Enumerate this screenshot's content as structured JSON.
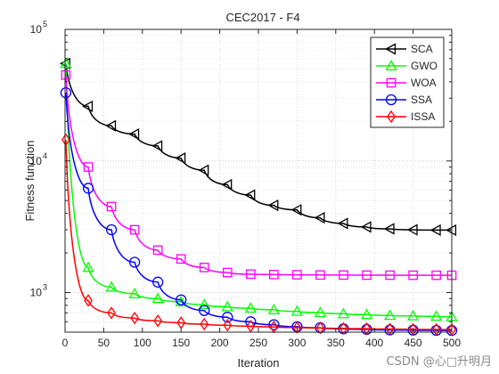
{
  "chart_data": {
    "type": "line",
    "title": "CEC2017 - F4",
    "xlabel": "Iteration",
    "ylabel": "Fitness function",
    "xlim": [
      0,
      500
    ],
    "ylim": [
      500,
      100000
    ],
    "yscale": "log",
    "grid": true,
    "legend_position": "top-right",
    "x_ticks": [
      "0",
      "50",
      "100",
      "150",
      "200",
      "250",
      "300",
      "350",
      "400",
      "450",
      "500"
    ],
    "y_ticks": [
      {
        "base": "10",
        "exp": "3",
        "value": 1000
      },
      {
        "base": "10",
        "exp": "4",
        "value": 10000
      },
      {
        "base": "10",
        "exp": "5",
        "value": 100000
      }
    ],
    "x": [
      1,
      30,
      60,
      90,
      120,
      150,
      180,
      210,
      240,
      270,
      300,
      330,
      360,
      390,
      420,
      450,
      480,
      500
    ],
    "series": [
      {
        "name": "SCA",
        "color": "#000000",
        "marker": "triangle-left",
        "values": [
          55000,
          26000,
          18500,
          16000,
          13000,
          10500,
          8500,
          6600,
          5500,
          4600,
          4250,
          3700,
          3350,
          3150,
          3050,
          3000,
          2980,
          2980
        ]
      },
      {
        "name": "GWO",
        "color": "#00ff00",
        "marker": "triangle-up",
        "values": [
          55000,
          1550,
          1100,
          980,
          900,
          850,
          810,
          780,
          760,
          740,
          720,
          705,
          690,
          680,
          670,
          665,
          660,
          655
        ]
      },
      {
        "name": "WOA",
        "color": "#ff00ff",
        "marker": "square",
        "values": [
          45000,
          9000,
          4500,
          3000,
          2100,
          1800,
          1550,
          1420,
          1380,
          1370,
          1365,
          1360,
          1358,
          1356,
          1355,
          1354,
          1353,
          1353
        ]
      },
      {
        "name": "SSA",
        "color": "#0000ff",
        "marker": "circle",
        "values": [
          33000,
          6200,
          3000,
          1700,
          1200,
          880,
          730,
          650,
          600,
          570,
          550,
          540,
          530,
          525,
          520,
          518,
          516,
          515
        ]
      },
      {
        "name": "ISSA",
        "color": "#ff0000",
        "marker": "diamond",
        "values": [
          14500,
          870,
          700,
          640,
          610,
          590,
          575,
          565,
          555,
          548,
          542,
          538,
          534,
          531,
          528,
          526,
          524,
          523
        ]
      }
    ]
  },
  "watermark": "CSDN @心□升明月"
}
